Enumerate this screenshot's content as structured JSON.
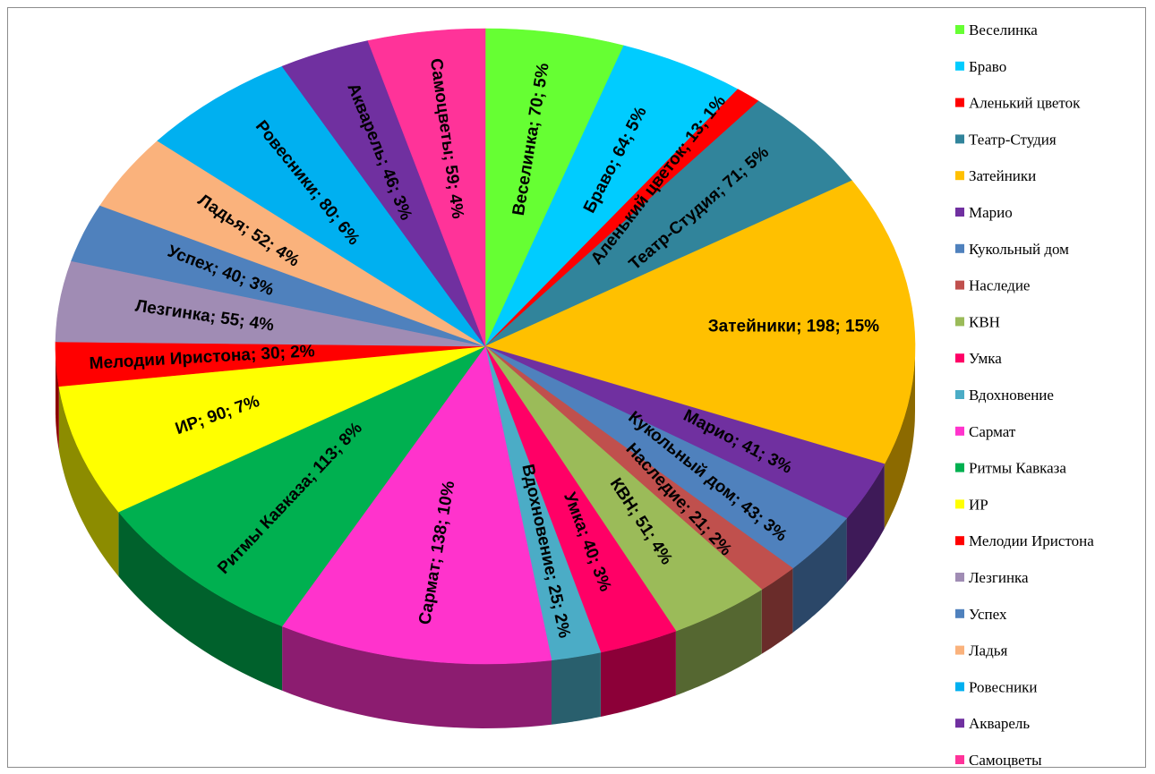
{
  "chart_data": {
    "type": "pie",
    "variant": "3d",
    "title": "",
    "legend_position": "right",
    "slices": [
      {
        "name": "Веселинка",
        "value": 70,
        "percent": "5%",
        "label": "Веселинка; 70; 5%",
        "color": "#66ff33"
      },
      {
        "name": "Браво",
        "value": 64,
        "percent": "5%",
        "label": "Браво; 64; 5%",
        "color": "#00ccff"
      },
      {
        "name": "Аленький цветок",
        "value": 13,
        "percent": "1%",
        "label": "Аленький цветок; 13; 1%",
        "color": "#ff0000"
      },
      {
        "name": "Театр-Студия",
        "value": 71,
        "percent": "5%",
        "label": "Театр-Студия; 71; 5%",
        "color": "#31849b"
      },
      {
        "name": "Затейники",
        "value": 198,
        "percent": "15%",
        "label": "Затейники; 198; 15%",
        "color": "#ffc000"
      },
      {
        "name": "Марио",
        "value": 41,
        "percent": "3%",
        "label": "Марио; 41; 3%",
        "color": "#7030a0"
      },
      {
        "name": "Кукольный дом",
        "value": 43,
        "percent": "3%",
        "label": "Кукольный дом; 43; 3%",
        "color": "#4f81bd"
      },
      {
        "name": "Наследие",
        "value": 21,
        "percent": "2%",
        "label": "Наследие; 21; 2%",
        "color": "#c0504d"
      },
      {
        "name": "КВН",
        "value": 51,
        "percent": "4%",
        "label": "КВН; 51; 4%",
        "color": "#9bbb59"
      },
      {
        "name": "Умка",
        "value": 40,
        "percent": "3%",
        "label": "Умка; 40; 3%",
        "color": "#ff0066"
      },
      {
        "name": "Вдохновение",
        "value": 25,
        "percent": "2%",
        "label": "Вдохновение; 25; 2%",
        "color": "#4bacc6"
      },
      {
        "name": "Сармат",
        "value": 138,
        "percent": "10%",
        "label": "Сармат; 138; 10%",
        "color": "#ff33cc"
      },
      {
        "name": "Ритмы Кавказа",
        "value": 113,
        "percent": "8%",
        "label": "Ритмы Кавказа; 113; 8%",
        "color": "#00b050"
      },
      {
        "name": "ИР",
        "value": 90,
        "percent": "7%",
        "label": "ИР; 90; 7%",
        "color": "#ffff00"
      },
      {
        "name": "Мелодии Иристона",
        "value": 30,
        "percent": "2%",
        "label": "Мелодии Иристона; 30; 2%",
        "color": "#ff0000"
      },
      {
        "name": "Лезгинка",
        "value": 55,
        "percent": "4%",
        "label": "Лезгинка; 55; 4%",
        "color": "#a08cb4"
      },
      {
        "name": "Успех",
        "value": 40,
        "percent": "3%",
        "label": "Успех; 40; 3%",
        "color": "#4f81bd"
      },
      {
        "name": "Ладья",
        "value": 52,
        "percent": "4%",
        "label": "Ладья; 52; 4%",
        "color": "#fab27c"
      },
      {
        "name": "Ровесники",
        "value": 80,
        "percent": "6%",
        "label": "Ровесники; 80; 6%",
        "color": "#00b0f0"
      },
      {
        "name": "Акварель",
        "value": 46,
        "percent": "3%",
        "label": "Акварель; 46; 3%",
        "color": "#7030a0"
      },
      {
        "name": "Самоцветы",
        "value": 59,
        "percent": "4%",
        "label": "Самоцветы; 59; 4%",
        "color": "#ff3399"
      }
    ]
  }
}
